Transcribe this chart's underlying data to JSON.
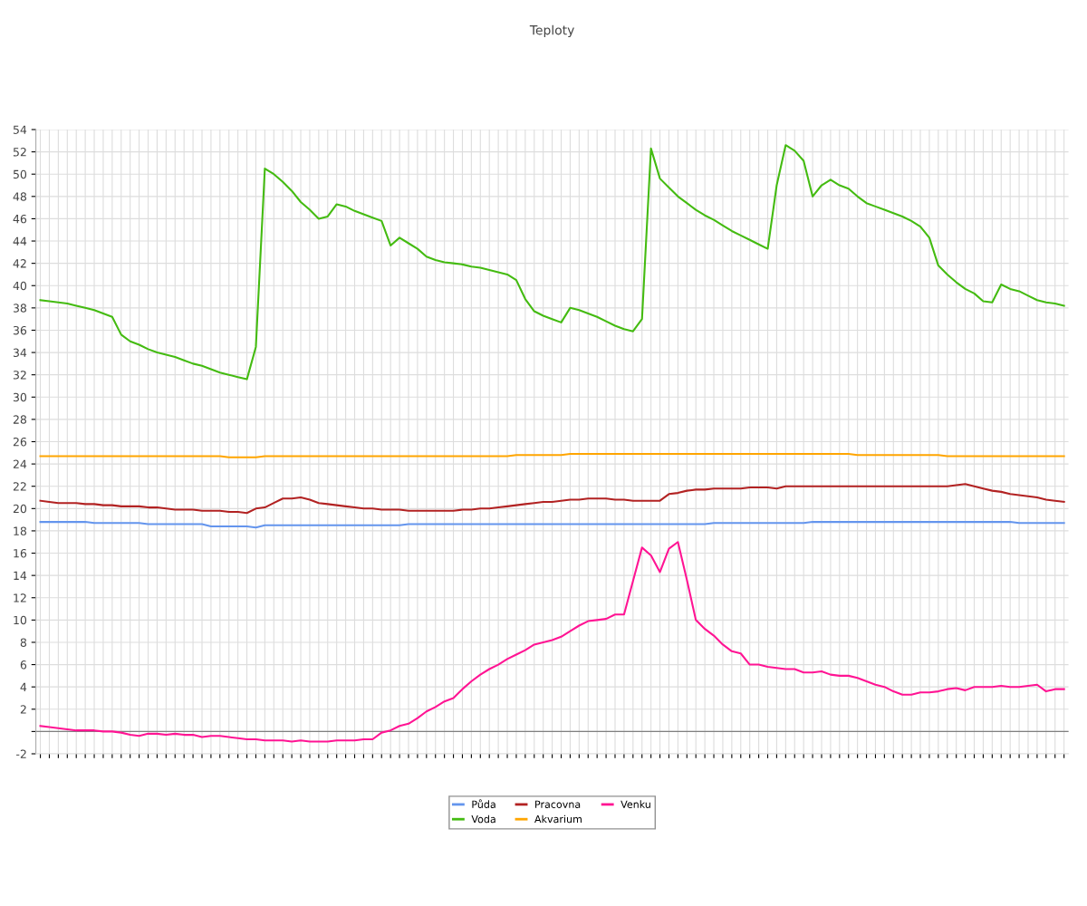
{
  "chart_data": {
    "type": "line",
    "title": "Teploty",
    "categories": [
      null,
      null,
      null,
      null,
      null,
      null,
      null,
      null,
      null,
      null,
      null,
      null,
      null,
      null,
      null,
      null,
      null,
      null,
      null,
      null,
      null,
      null,
      null,
      null,
      null,
      null,
      null,
      null,
      null,
      null,
      null,
      null,
      null,
      null,
      null,
      null,
      null,
      null,
      null,
      null,
      null,
      null,
      null,
      null,
      null,
      null,
      null,
      null,
      null,
      null,
      null,
      null,
      null,
      null,
      null,
      null,
      null,
      null,
      null,
      null,
      null,
      null,
      null,
      null,
      null,
      null,
      null,
      null,
      null,
      null,
      null,
      null,
      null,
      null,
      null,
      null,
      null,
      null,
      null,
      null,
      null,
      null,
      null,
      null,
      null,
      null,
      null,
      null,
      null,
      null,
      null,
      null,
      null,
      null,
      null,
      null,
      null,
      null,
      null,
      null,
      null,
      null,
      null,
      null,
      null,
      null,
      null,
      null,
      null,
      null,
      null,
      null,
      null,
      null,
      null
    ],
    "series": [
      {
        "name": "Půda",
        "color": "#6495ed",
        "values": [
          18.8,
          18.8,
          18.8,
          18.8,
          18.8,
          18.8,
          18.7,
          18.7,
          18.7,
          18.7,
          18.7,
          18.7,
          18.6,
          18.6,
          18.6,
          18.6,
          18.6,
          18.6,
          18.6,
          18.4,
          18.4,
          18.4,
          18.4,
          18.4,
          18.3,
          18.5,
          18.5,
          18.5,
          18.5,
          18.5,
          18.5,
          18.5,
          18.5,
          18.5,
          18.5,
          18.5,
          18.5,
          18.5,
          18.5,
          18.5,
          18.5,
          18.6,
          18.6,
          18.6,
          18.6,
          18.6,
          18.6,
          18.6,
          18.6,
          18.6,
          18.6,
          18.6,
          18.6,
          18.6,
          18.6,
          18.6,
          18.6,
          18.6,
          18.6,
          18.6,
          18.6,
          18.6,
          18.6,
          18.6,
          18.6,
          18.6,
          18.6,
          18.6,
          18.6,
          18.6,
          18.6,
          18.6,
          18.6,
          18.6,
          18.6,
          18.7,
          18.7,
          18.7,
          18.7,
          18.7,
          18.7,
          18.7,
          18.7,
          18.7,
          18.7,
          18.7,
          18.8,
          18.8,
          18.8,
          18.8,
          18.8,
          18.8,
          18.8,
          18.8,
          18.8,
          18.8,
          18.8,
          18.8,
          18.8,
          18.8,
          18.8,
          18.8,
          18.8,
          18.8,
          18.8,
          18.8,
          18.8,
          18.8,
          18.8,
          18.7,
          18.7,
          18.7,
          18.7,
          18.7,
          18.7
        ]
      },
      {
        "name": "Voda",
        "color": "#44bb11",
        "values": [
          38.7,
          38.6,
          38.5,
          38.4,
          38.2,
          38.0,
          37.8,
          37.5,
          37.2,
          35.6,
          35.0,
          34.7,
          34.3,
          34.0,
          33.8,
          33.6,
          33.3,
          33.0,
          32.8,
          32.5,
          32.2,
          32.0,
          31.8,
          31.6,
          34.5,
          50.5,
          50.0,
          49.3,
          48.5,
          47.5,
          46.8,
          46.0,
          46.2,
          47.3,
          47.1,
          46.7,
          46.4,
          46.1,
          45.8,
          43.6,
          44.3,
          43.8,
          43.3,
          42.6,
          42.3,
          42.1,
          42.0,
          41.9,
          41.7,
          41.6,
          41.4,
          41.2,
          41.0,
          40.5,
          38.8,
          37.7,
          37.3,
          37.0,
          36.7,
          38.0,
          37.8,
          37.5,
          37.2,
          36.8,
          36.4,
          36.1,
          35.9,
          37.0,
          52.3,
          49.6,
          48.8,
          48.0,
          47.4,
          46.8,
          46.3,
          45.9,
          45.4,
          44.9,
          44.5,
          44.1,
          43.7,
          43.3,
          49.0,
          52.6,
          52.1,
          51.2,
          48.0,
          49.0,
          49.5,
          49.0,
          48.7,
          48.0,
          47.4,
          47.1,
          46.8,
          46.5,
          46.2,
          45.8,
          45.3,
          44.3,
          41.8,
          41.0,
          40.3,
          39.7,
          39.3,
          38.6,
          38.5,
          40.1,
          39.7,
          39.5,
          39.1,
          38.7,
          38.5,
          38.4,
          38.2
        ]
      },
      {
        "name": "Pracovna",
        "color": "#b22222",
        "values": [
          20.7,
          20.6,
          20.5,
          20.5,
          20.5,
          20.4,
          20.4,
          20.3,
          20.3,
          20.2,
          20.2,
          20.2,
          20.1,
          20.1,
          20.0,
          19.9,
          19.9,
          19.9,
          19.8,
          19.8,
          19.8,
          19.7,
          19.7,
          19.6,
          20.0,
          20.1,
          20.5,
          20.9,
          20.9,
          21.0,
          20.8,
          20.5,
          20.4,
          20.3,
          20.2,
          20.1,
          20.0,
          20.0,
          19.9,
          19.9,
          19.9,
          19.8,
          19.8,
          19.8,
          19.8,
          19.8,
          19.8,
          19.9,
          19.9,
          20.0,
          20.0,
          20.1,
          20.2,
          20.3,
          20.4,
          20.5,
          20.6,
          20.6,
          20.7,
          20.8,
          20.8,
          20.9,
          20.9,
          20.9,
          20.8,
          20.8,
          20.7,
          20.7,
          20.7,
          20.7,
          21.3,
          21.4,
          21.6,
          21.7,
          21.7,
          21.8,
          21.8,
          21.8,
          21.8,
          21.9,
          21.9,
          21.9,
          21.8,
          22.0,
          22.0,
          22.0,
          22.0,
          22.0,
          22.0,
          22.0,
          22.0,
          22.0,
          22.0,
          22.0,
          22.0,
          22.0,
          22.0,
          22.0,
          22.0,
          22.0,
          22.0,
          22.0,
          22.1,
          22.2,
          22.0,
          21.8,
          21.6,
          21.5,
          21.3,
          21.2,
          21.1,
          21.0,
          20.8,
          20.7,
          20.6
        ]
      },
      {
        "name": "Akvarium",
        "color": "#ffa500",
        "values": [
          24.7,
          24.7,
          24.7,
          24.7,
          24.7,
          24.7,
          24.7,
          24.7,
          24.7,
          24.7,
          24.7,
          24.7,
          24.7,
          24.7,
          24.7,
          24.7,
          24.7,
          24.7,
          24.7,
          24.7,
          24.7,
          24.6,
          24.6,
          24.6,
          24.6,
          24.7,
          24.7,
          24.7,
          24.7,
          24.7,
          24.7,
          24.7,
          24.7,
          24.7,
          24.7,
          24.7,
          24.7,
          24.7,
          24.7,
          24.7,
          24.7,
          24.7,
          24.7,
          24.7,
          24.7,
          24.7,
          24.7,
          24.7,
          24.7,
          24.7,
          24.7,
          24.7,
          24.7,
          24.8,
          24.8,
          24.8,
          24.8,
          24.8,
          24.8,
          24.9,
          24.9,
          24.9,
          24.9,
          24.9,
          24.9,
          24.9,
          24.9,
          24.9,
          24.9,
          24.9,
          24.9,
          24.9,
          24.9,
          24.9,
          24.9,
          24.9,
          24.9,
          24.9,
          24.9,
          24.9,
          24.9,
          24.9,
          24.9,
          24.9,
          24.9,
          24.9,
          24.9,
          24.9,
          24.9,
          24.9,
          24.9,
          24.8,
          24.8,
          24.8,
          24.8,
          24.8,
          24.8,
          24.8,
          24.8,
          24.8,
          24.8,
          24.7,
          24.7,
          24.7,
          24.7,
          24.7,
          24.7,
          24.7,
          24.7,
          24.7,
          24.7,
          24.7,
          24.7,
          24.7,
          24.7
        ]
      },
      {
        "name": "Venku",
        "color": "#ff1493",
        "values": [
          0.5,
          0.4,
          0.3,
          0.2,
          0.1,
          0.1,
          0.1,
          0.0,
          0.0,
          -0.1,
          -0.3,
          -0.4,
          -0.2,
          -0.2,
          -0.3,
          -0.2,
          -0.3,
          -0.3,
          -0.5,
          -0.4,
          -0.4,
          -0.5,
          -0.6,
          -0.7,
          -0.7,
          -0.8,
          -0.8,
          -0.8,
          -0.9,
          -0.8,
          -0.9,
          -0.9,
          -0.9,
          -0.8,
          -0.8,
          -0.8,
          -0.7,
          -0.7,
          -0.1,
          0.1,
          0.5,
          0.7,
          1.2,
          1.8,
          2.2,
          2.7,
          3.0,
          3.8,
          4.5,
          5.1,
          5.6,
          6.0,
          6.5,
          6.9,
          7.3,
          7.8,
          8.0,
          8.2,
          8.5,
          9.0,
          9.5,
          9.9,
          10.0,
          10.1,
          10.5,
          10.5,
          13.5,
          16.5,
          15.8,
          14.3,
          16.4,
          17.0,
          13.6,
          10.0,
          9.2,
          8.6,
          7.8,
          7.2,
          7.0,
          6.0,
          6.0,
          5.8,
          5.7,
          5.6,
          5.6,
          5.3,
          5.3,
          5.4,
          5.1,
          5.0,
          5.0,
          4.8,
          4.5,
          4.2,
          4.0,
          3.6,
          3.3,
          3.3,
          3.5,
          3.5,
          3.6,
          3.8,
          3.9,
          3.7,
          4.0,
          4.0,
          4.0,
          4.1,
          4.0,
          4.0,
          4.1,
          4.2,
          3.6,
          3.8,
          3.8
        ]
      }
    ],
    "ylim": [
      -2,
      54
    ],
    "yticks": [
      -2,
      {
        "value": 0,
        "label": null
      },
      2,
      4,
      6,
      8,
      10,
      12,
      14,
      16,
      18,
      20,
      22,
      24,
      26,
      28,
      30,
      32,
      34,
      36,
      38,
      40,
      42,
      44,
      46,
      48,
      50,
      52,
      54
    ],
    "ref_lines": [
      {
        "axis": "y",
        "value": 0,
        "color": "#808080"
      }
    ],
    "grid": true,
    "legend": "bottom",
    "marker": "none",
    "line_style": "solid"
  }
}
